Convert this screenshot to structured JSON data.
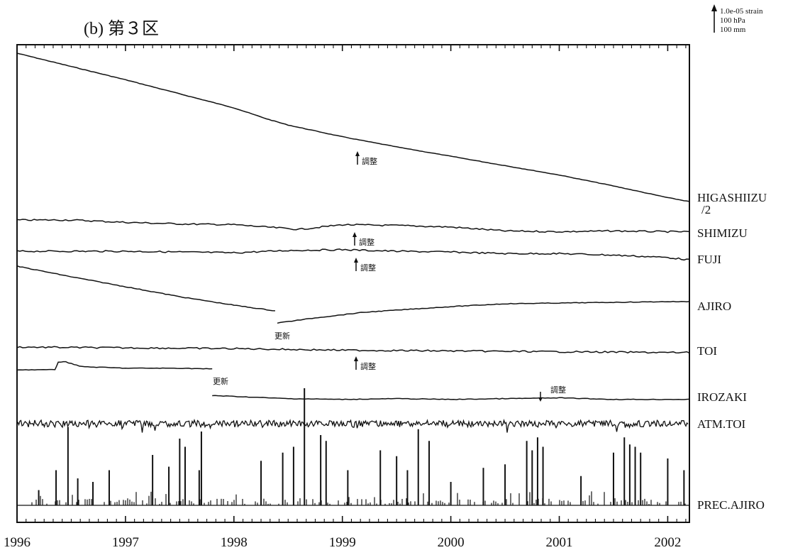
{
  "chart_data": {
    "type": "line",
    "title": "(b) 第３区",
    "scale_legend": [
      "1.0e-05 strain",
      "100 hPa",
      "100 mm"
    ],
    "x_ticks": [
      "1996",
      "1997",
      "1998",
      "1999",
      "2000",
      "2001",
      "2002"
    ],
    "xlim": [
      1996.0,
      2002.2
    ],
    "grid": false,
    "series": [
      {
        "name": "HIGASHIIZU /2",
        "label_lines": [
          "HIGASHIIZU",
          "/2"
        ],
        "style": "trend",
        "points": [
          [
            1996.0,
            0
          ],
          [
            1996.5,
            -0.17
          ],
          [
            1997.0,
            -0.34
          ],
          [
            1997.5,
            -0.52
          ],
          [
            1998.0,
            -0.7
          ],
          [
            1998.3,
            -0.84
          ],
          [
            1998.5,
            -0.92
          ],
          [
            1999.0,
            -1.07
          ],
          [
            1999.5,
            -1.2
          ],
          [
            2000.0,
            -1.32
          ],
          [
            2000.5,
            -1.44
          ],
          [
            2001.0,
            -1.56
          ],
          [
            2001.5,
            -1.7
          ],
          [
            2002.0,
            -1.85
          ],
          [
            2002.2,
            -1.9
          ]
        ]
      },
      {
        "name": "SHIMIZU",
        "style": "wiggle",
        "points": [
          [
            1996.0,
            0
          ],
          [
            1996.5,
            0.0
          ],
          [
            1997.0,
            -0.03
          ],
          [
            1997.5,
            -0.05
          ],
          [
            1998.0,
            -0.06
          ],
          [
            1998.6,
            -0.12
          ],
          [
            1999.0,
            -0.06
          ],
          [
            1999.5,
            -0.07
          ],
          [
            2000.0,
            -0.09
          ],
          [
            2000.5,
            -0.14
          ],
          [
            2001.0,
            -0.15
          ],
          [
            2001.5,
            -0.14
          ],
          [
            2002.0,
            -0.15
          ],
          [
            2002.2,
            -0.15
          ]
        ]
      },
      {
        "name": "FUJI",
        "style": "wiggle",
        "points": [
          [
            1996.0,
            0
          ],
          [
            1997.0,
            0.0
          ],
          [
            1998.0,
            -0.02
          ],
          [
            1998.5,
            0.01
          ],
          [
            1999.0,
            0.02
          ],
          [
            1999.5,
            0.0
          ],
          [
            2000.0,
            -0.01
          ],
          [
            2000.5,
            -0.03
          ],
          [
            2001.0,
            -0.03
          ],
          [
            2001.5,
            -0.05
          ],
          [
            2002.0,
            -0.08
          ],
          [
            2002.2,
            -0.11
          ]
        ]
      },
      {
        "name": "AJIRO",
        "style": "segments",
        "segments": [
          [
            [
              1996.0,
              0
            ],
            [
              1996.5,
              -0.15
            ],
            [
              1997.0,
              -0.29
            ],
            [
              1997.5,
              -0.43
            ],
            [
              1998.0,
              -0.55
            ],
            [
              1998.38,
              -0.63
            ]
          ],
          [
            [
              1998.4,
              -0.8
            ],
            [
              1998.8,
              -0.72
            ],
            [
              1999.2,
              -0.65
            ],
            [
              1999.6,
              -0.61
            ],
            [
              2000.0,
              -0.57
            ],
            [
              2000.5,
              -0.53
            ],
            [
              2001.0,
              -0.52
            ],
            [
              2001.5,
              -0.51
            ],
            [
              2002.0,
              -0.5
            ],
            [
              2002.2,
              -0.5
            ]
          ]
        ]
      },
      {
        "name": "TOI",
        "style": "wiggle",
        "points": [
          [
            1996.0,
            0
          ],
          [
            1997.0,
            -0.01
          ],
          [
            1998.0,
            -0.02
          ],
          [
            1999.0,
            -0.04
          ],
          [
            2000.0,
            -0.05
          ],
          [
            2001.0,
            -0.06
          ],
          [
            2002.0,
            -0.07
          ],
          [
            2002.2,
            -0.07
          ]
        ]
      },
      {
        "name": "IROZAKI",
        "style": "segments",
        "segments": [
          [
            [
              1996.0,
              0
            ],
            [
              1996.35,
              0.0
            ],
            [
              1996.38,
              0.1
            ],
            [
              1996.45,
              0.1
            ],
            [
              1996.6,
              0.04
            ],
            [
              1997.0,
              0.02
            ],
            [
              1997.5,
              0.02
            ],
            [
              1997.8,
              0.01
            ]
          ],
          [
            [
              1997.8,
              -0.33
            ],
            [
              1998.5,
              -0.37
            ],
            [
              1999.0,
              -0.38
            ],
            [
              1999.5,
              -0.37
            ],
            [
              2000.0,
              -0.38
            ],
            [
              2000.5,
              -0.37
            ],
            [
              2001.0,
              -0.36
            ],
            [
              2001.5,
              -0.38
            ],
            [
              2002.0,
              -0.38
            ],
            [
              2002.2,
              -0.38
            ]
          ]
        ]
      },
      {
        "name": "ATM.TOI",
        "style": "noise",
        "points": [
          [
            1996.0,
            0
          ],
          [
            2002.2,
            0
          ]
        ]
      },
      {
        "name": "PREC.AJIRO",
        "style": "bars",
        "points": [
          [
            1996.2,
            0.13
          ],
          [
            1996.36,
            0.3
          ],
          [
            1996.47,
            0.67
          ],
          [
            1996.56,
            0.23
          ],
          [
            1996.7,
            0.2
          ],
          [
            1996.85,
            0.3
          ],
          [
            1997.25,
            0.43
          ],
          [
            1997.4,
            0.33
          ],
          [
            1997.5,
            0.57
          ],
          [
            1997.55,
            0.5
          ],
          [
            1997.68,
            0.3
          ],
          [
            1997.7,
            0.63
          ],
          [
            1998.25,
            0.38
          ],
          [
            1998.45,
            0.45
          ],
          [
            1998.55,
            0.5
          ],
          [
            1998.65,
            1.0
          ],
          [
            1998.8,
            0.6
          ],
          [
            1998.85,
            0.55
          ],
          [
            1999.05,
            0.3
          ],
          [
            1999.35,
            0.47
          ],
          [
            1999.5,
            0.42
          ],
          [
            1999.6,
            0.3
          ],
          [
            1999.7,
            0.65
          ],
          [
            1999.8,
            0.55
          ],
          [
            2000.0,
            0.2
          ],
          [
            2000.3,
            0.32
          ],
          [
            2000.5,
            0.35
          ],
          [
            2000.7,
            0.55
          ],
          [
            2000.75,
            0.47
          ],
          [
            2000.8,
            0.58
          ],
          [
            2000.85,
            0.5
          ],
          [
            2001.2,
            0.25
          ],
          [
            2001.5,
            0.45
          ],
          [
            2001.6,
            0.58
          ],
          [
            2001.65,
            0.52
          ],
          [
            2001.7,
            0.5
          ],
          [
            2001.75,
            0.45
          ],
          [
            2002.0,
            0.4
          ],
          [
            2002.15,
            0.3
          ]
        ]
      }
    ],
    "annotations": [
      "調整",
      "調整",
      "調整",
      "更新",
      "調整",
      "更新",
      "調整"
    ]
  }
}
